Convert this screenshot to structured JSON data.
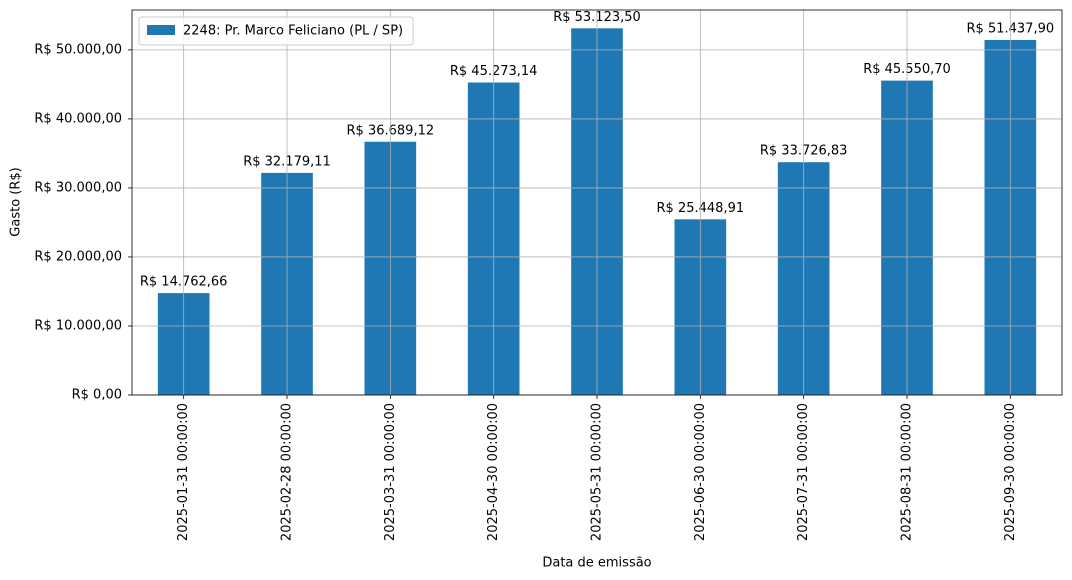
{
  "chart_data": {
    "type": "bar",
    "x_label": "Data de emissão",
    "y_label": "Gasto (R$)",
    "categories": [
      "2025-01-31 00:00:00",
      "2025-02-28 00:00:00",
      "2025-03-31 00:00:00",
      "2025-04-30 00:00:00",
      "2025-05-31 00:00:00",
      "2025-06-30 00:00:00",
      "2025-07-31 00:00:00",
      "2025-08-31 00:00:00",
      "2025-09-30 00:00:00"
    ],
    "series": [
      {
        "name": "2248: Pr. Marco Feliciano (PL / SP)",
        "color": "#1f77b4",
        "values": [
          14762.66,
          32179.11,
          36689.12,
          45273.14,
          53123.5,
          25448.91,
          33726.83,
          45550.7,
          51437.9
        ],
        "value_labels": [
          "R$ 14.762,66",
          "R$ 32.179,11",
          "R$ 36.689,12",
          "R$ 45.273,14",
          "R$ 53.123,50",
          "R$ 25.448,91",
          "R$ 33.726,83",
          "R$ 45.550,70",
          "R$ 51.437,90"
        ]
      }
    ],
    "ylim": [
      0,
      55779.7
    ],
    "yticks": [
      {
        "value": 0,
        "label": "R$ 0,00"
      },
      {
        "value": 10000,
        "label": "R$ 10.000,00"
      },
      {
        "value": 20000,
        "label": "R$ 20.000,00"
      },
      {
        "value": 30000,
        "label": "R$ 30.000,00"
      },
      {
        "value": 40000,
        "label": "R$ 40.000,00"
      },
      {
        "value": 50000,
        "label": "R$ 50.000,00"
      }
    ],
    "grid": true,
    "legend": "upper-left"
  }
}
